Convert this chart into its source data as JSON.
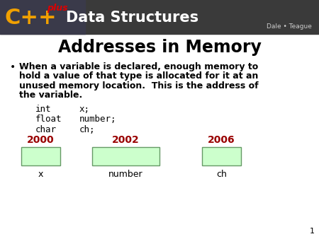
{
  "title": "Addresses in Memory",
  "title_fontsize": 17,
  "title_fontweight": "bold",
  "code_lines": [
    [
      "int",
      "x;"
    ],
    [
      "float",
      "number;"
    ],
    [
      "char",
      "ch;"
    ]
  ],
  "addresses": [
    "2000",
    "2002",
    "2006"
  ],
  "address_color": "#990000",
  "box_labels": [
    "x",
    "number",
    "ch"
  ],
  "box_color": "#ccffcc",
  "box_edge_color": "#669966",
  "header_bg": "#4a4a4a",
  "cpp_color": "#f0a000",
  "plus_color": "#dd0000",
  "data_structures_text": "Data Structures",
  "author_text": "Dale • Teague",
  "slide_number": "1",
  "background_color": "#ffffff",
  "bullet_lines": [
    "When a variable is declared, enough memory to",
    "hold a value of that type is allocated for it at an",
    "unused memory location.  This is the address of",
    "the variable."
  ]
}
